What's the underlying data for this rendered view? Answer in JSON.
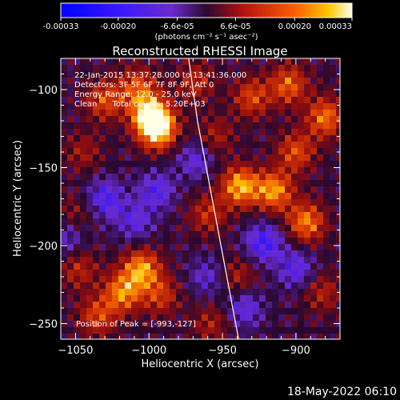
{
  "chart_data": {
    "type": "heatmap",
    "title": "Reconstructed RHESSI Image",
    "xlabel": "Heliocentric X (arcsec)",
    "ylabel": "Heliocentric Y (arcsec)",
    "xlim": [
      -1060,
      -870
    ],
    "ylim": [
      -260,
      -80
    ],
    "x_ticks": [
      -1050,
      -1000,
      -950,
      -900
    ],
    "y_ticks": [
      -100,
      -150,
      -200,
      -250
    ],
    "colorbar": {
      "range": [
        -0.00033,
        0.00033
      ],
      "ticks": [
        "-0.00033",
        "-0.00020",
        "-6.6e-05",
        "6.6e-05",
        "0.00020",
        "0.00033"
      ],
      "unit_label": "(photons cm⁻² s⁻¹ asec⁻²)"
    },
    "annotations": [
      "22-Jan-2015 13:37:28.000 to 13:41:36.000",
      "Detectors: 3F 5F 6F 7F 8F 9F, Att 0",
      "Energy Range: 12.0 - 25.0 keV",
      "Clean      Total counts: 5.20E+03"
    ],
    "peak_label": "Position of Peak = [-993,-127]",
    "peak": [
      -993,
      -127
    ],
    "hot_spots": [
      {
        "x": -994,
        "y": -125,
        "v": 0.00033
      },
      {
        "x": -1000,
        "y": -115,
        "v": 0.00026
      },
      {
        "x": -1008,
        "y": -98,
        "v": 0.00016
      },
      {
        "x": -1030,
        "y": -107,
        "v": 0.00017
      },
      {
        "x": -1005,
        "y": -215,
        "v": 0.00024
      },
      {
        "x": -1018,
        "y": -230,
        "v": 0.00022
      },
      {
        "x": -1035,
        "y": -245,
        "v": 0.00016
      },
      {
        "x": -992,
        "y": -232,
        "v": 0.00014
      },
      {
        "x": -1048,
        "y": -215,
        "v": 0.00012
      },
      {
        "x": -938,
        "y": -162,
        "v": 0.00026
      },
      {
        "x": -915,
        "y": -165,
        "v": 0.00024
      },
      {
        "x": -893,
        "y": -185,
        "v": 0.00022
      },
      {
        "x": -880,
        "y": -118,
        "v": 0.00021
      },
      {
        "x": -905,
        "y": -97,
        "v": 0.00019
      },
      {
        "x": -930,
        "y": -105,
        "v": 0.00016
      },
      {
        "x": -900,
        "y": -140,
        "v": 0.00017
      },
      {
        "x": -960,
        "y": -180,
        "v": 0.00013
      },
      {
        "x": -940,
        "y": -220,
        "v": 0.00011
      },
      {
        "x": -968,
        "y": -95,
        "v": 0.00012
      },
      {
        "x": -955,
        "y": -130,
        "v": 0.0001
      },
      {
        "x": -1045,
        "y": -140,
        "v": 9e-05
      },
      {
        "x": -1050,
        "y": -180,
        "v": 8e-05
      },
      {
        "x": -882,
        "y": -230,
        "v": 0.00011
      },
      {
        "x": -958,
        "y": -250,
        "v": 0.0001
      }
    ],
    "cold_spots": [
      {
        "x": -1030,
        "y": -170,
        "v": -0.00016
      },
      {
        "x": -995,
        "y": -165,
        "v": -0.00014
      },
      {
        "x": -1010,
        "y": -185,
        "v": -0.00012
      },
      {
        "x": -968,
        "y": -145,
        "v": -0.00012
      },
      {
        "x": -922,
        "y": -198,
        "v": -0.00018
      },
      {
        "x": -900,
        "y": -215,
        "v": -0.00014
      },
      {
        "x": -935,
        "y": -240,
        "v": -0.00013
      },
      {
        "x": -1055,
        "y": -195,
        "v": -0.0001
      },
      {
        "x": -960,
        "y": -220,
        "v": -0.00011
      }
    ],
    "limb_curve": [
      [
        -973,
        -80
      ],
      [
        -970,
        -100
      ],
      [
        -967,
        -120
      ],
      [
        -963,
        -140
      ],
      [
        -959,
        -160
      ],
      [
        -955,
        -180
      ],
      [
        -951,
        -200
      ],
      [
        -947,
        -220
      ],
      [
        -943,
        -240
      ],
      [
        -939,
        -260
      ]
    ]
  },
  "footer": {
    "date_stamp": "18-May-2022 06:10"
  },
  "colors": {
    "background": "#000000",
    "axis": "#ffffff",
    "limb_line": "#ffffff"
  }
}
